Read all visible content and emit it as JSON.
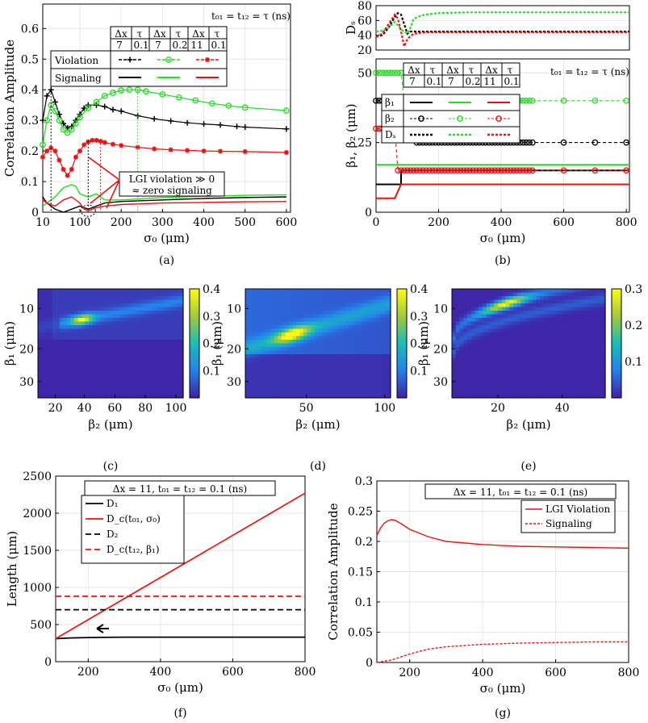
{
  "chart_data": [
    {
      "id": "a",
      "type": "line",
      "caption": "(a)",
      "xlabel": "σ₀ (μm)",
      "ylabel": "Correlation Amplitude",
      "xlim": [
        10,
        610
      ],
      "ylim": [
        0,
        0.68
      ],
      "xticks": [
        10,
        100,
        200,
        300,
        400,
        500,
        600
      ],
      "yticks": [
        0,
        0.1,
        0.2,
        0.3,
        0.4,
        0.5,
        0.6
      ],
      "header": "t₀₁ = t₁₂ = τ (ns)",
      "table": {
        "cols": [
          [
            "Δx",
            "τ"
          ],
          [
            "Δx",
            "τ"
          ],
          [
            "Δx",
            "τ"
          ]
        ],
        "vals": [
          [
            "7",
            "0.1"
          ],
          [
            "7",
            "0.2"
          ],
          [
            "11",
            "0.1"
          ]
        ],
        "rows": [
          "Violation",
          "Signaling"
        ]
      },
      "annotation": [
        "LGI violation ≫ 0",
        "≈ zero signaling"
      ],
      "series": [
        {
          "name": "Violation Δx=7 τ=0.1",
          "color": "#000000",
          "marker": "+",
          "x": [
            10,
            20,
            30,
            40,
            50,
            60,
            70,
            80,
            90,
            100,
            110,
            120,
            140,
            160,
            180,
            200,
            240,
            280,
            320,
            360,
            400,
            440,
            480,
            500,
            600
          ],
          "y": [
            0.3,
            0.38,
            0.4,
            0.36,
            0.32,
            0.29,
            0.275,
            0.28,
            0.3,
            0.32,
            0.34,
            0.35,
            0.35,
            0.345,
            0.335,
            0.33,
            0.315,
            0.305,
            0.298,
            0.292,
            0.288,
            0.285,
            0.28,
            0.278,
            0.272
          ]
        },
        {
          "name": "Violation Δx=7 τ=0.2",
          "color": "#22dd22",
          "marker": "o",
          "x": [
            10,
            20,
            30,
            40,
            50,
            60,
            70,
            80,
            90,
            100,
            120,
            140,
            160,
            180,
            200,
            220,
            240,
            260,
            300,
            340,
            380,
            420,
            460,
            500,
            600
          ],
          "y": [
            0.22,
            0.3,
            0.35,
            0.33,
            0.3,
            0.27,
            0.26,
            0.27,
            0.29,
            0.31,
            0.34,
            0.36,
            0.38,
            0.39,
            0.398,
            0.4,
            0.4,
            0.395,
            0.385,
            0.375,
            0.365,
            0.355,
            0.348,
            0.342,
            0.332
          ]
        },
        {
          "name": "Violation Δx=11 τ=0.1",
          "color": "#ee1111",
          "marker": "*",
          "x": [
            10,
            20,
            30,
            40,
            50,
            60,
            70,
            80,
            90,
            100,
            110,
            120,
            130,
            140,
            150,
            160,
            180,
            200,
            240,
            280,
            320,
            360,
            400,
            440,
            500,
            600
          ],
          "y": [
            0.18,
            0.2,
            0.21,
            0.2,
            0.17,
            0.14,
            0.12,
            0.14,
            0.18,
            0.2,
            0.22,
            0.23,
            0.235,
            0.235,
            0.232,
            0.228,
            0.222,
            0.218,
            0.212,
            0.207,
            0.204,
            0.202,
            0.2,
            0.199,
            0.198,
            0.195
          ]
        },
        {
          "name": "Signaling Δx=7 τ=0.1",
          "color": "#000000",
          "marker": "",
          "x": [
            10,
            20,
            30,
            40,
            50,
            60,
            80,
            100,
            110,
            120,
            140,
            160,
            200,
            300,
            400,
            500,
            600
          ],
          "y": [
            0.05,
            0.03,
            0.02,
            0.01,
            0.005,
            0.0,
            0.01,
            0.02,
            0.015,
            0.01,
            0.02,
            0.03,
            0.035,
            0.04,
            0.045,
            0.048,
            0.05
          ]
        },
        {
          "name": "Signaling Δx=7 τ=0.2",
          "color": "#22dd22",
          "marker": "",
          "x": [
            10,
            20,
            40,
            60,
            80,
            90,
            100,
            120,
            140,
            160,
            200,
            300,
            400,
            500,
            600
          ],
          "y": [
            0.02,
            0.03,
            0.05,
            0.08,
            0.09,
            0.085,
            0.06,
            0.05,
            0.06,
            0.04,
            0.04,
            0.048,
            0.052,
            0.055,
            0.057
          ]
        },
        {
          "name": "Signaling Δx=11 τ=0.1",
          "color": "#ee1111",
          "marker": "",
          "x": [
            10,
            20,
            40,
            60,
            80,
            100,
            110,
            120,
            140,
            160,
            200,
            300,
            400,
            500,
            600
          ],
          "y": [
            0.04,
            0.03,
            0.02,
            0.04,
            0.05,
            0.03,
            0.01,
            0.005,
            0.015,
            0.02,
            0.025,
            0.03,
            0.032,
            0.034,
            0.035
          ]
        }
      ]
    },
    {
      "id": "b-top",
      "type": "line",
      "ylabel": "Dₛ",
      "xlim": [
        0,
        810
      ],
      "ylim": [
        20,
        80
      ],
      "yticks": [
        20,
        40,
        60,
        80
      ],
      "series": [
        {
          "name": "Dₛ Δx=7 τ=0.1",
          "color": "#000000",
          "x": [
            0,
            20,
            40,
            60,
            70,
            80,
            90,
            100,
            110,
            130,
            160,
            200,
            300,
            400,
            500,
            600,
            700,
            810
          ],
          "y": [
            38,
            40,
            50,
            65,
            70,
            68,
            55,
            42,
            45,
            45,
            45,
            45,
            45,
            45,
            45,
            45,
            45,
            45
          ]
        },
        {
          "name": "Dₛ Δx=7 τ=0.2",
          "color": "#22dd22",
          "x": [
            0,
            20,
            40,
            60,
            80,
            100,
            110,
            120,
            140,
            160,
            200,
            300,
            400,
            500,
            600,
            700,
            810
          ],
          "y": [
            45,
            46,
            50,
            58,
            48,
            42,
            50,
            62,
            66,
            68,
            70,
            71,
            71,
            71,
            71,
            71,
            71
          ]
        },
        {
          "name": "Dₛ Δx=11 τ=0.1",
          "color": "#ee1111",
          "x": [
            0,
            20,
            40,
            60,
            70,
            80,
            90,
            100,
            120,
            160,
            200,
            300,
            400,
            500,
            600,
            700,
            810
          ],
          "y": [
            38,
            42,
            55,
            68,
            62,
            45,
            25,
            35,
            42,
            44,
            44,
            44,
            44,
            44,
            44,
            44,
            44
          ]
        }
      ]
    },
    {
      "id": "b",
      "type": "line",
      "caption": "(b)",
      "xlabel": "σ₀ (μm)",
      "ylabel": "β₁, β₂ (μm)",
      "xlim": [
        0,
        810
      ],
      "ylim": [
        0,
        55
      ],
      "xticks": [
        0,
        200,
        400,
        600,
        800
      ],
      "yticks": [
        0,
        25,
        50
      ],
      "header": "t₀₁ = t₁₂ = τ (ns)",
      "table": {
        "cols": [
          [
            "Δx",
            "τ"
          ],
          [
            "Δx",
            "τ"
          ],
          [
            "Δx",
            "τ"
          ]
        ],
        "vals": [
          [
            "7",
            "0.1"
          ],
          [
            "7",
            "0.2"
          ],
          [
            "11",
            "0.1"
          ]
        ],
        "rows": [
          "β₁",
          "β₂",
          "Dₛ"
        ]
      },
      "series": [
        {
          "name": "β₁ Δx=7 τ=0.1",
          "color": "#000000",
          "x": [
            0,
            80,
            80,
            810
          ],
          "y": [
            10,
            10,
            15,
            15
          ]
        },
        {
          "name": "β₁ Δx=7 τ=0.2",
          "color": "#22dd22",
          "x": [
            0,
            810
          ],
          "y": [
            17,
            17
          ]
        },
        {
          "name": "β₁ Δx=11 τ=0.1",
          "color": "#ee1111",
          "x": [
            0,
            60,
            80,
            810
          ],
          "y": [
            5,
            5,
            10,
            10
          ]
        },
        {
          "name": "β₂ Δx=7 τ=0.1",
          "color": "#000000",
          "x": [
            0,
            120,
            130,
            810
          ],
          "y": [
            40,
            40,
            25,
            25
          ]
        },
        {
          "name": "β₂ Δx=7 τ=0.2",
          "color": "#22dd22",
          "x": [
            0,
            80,
            90,
            810
          ],
          "y": [
            50,
            50,
            40,
            40
          ]
        },
        {
          "name": "β₂ Δx=11 τ=0.1",
          "color": "#ee1111",
          "x": [
            0,
            60,
            70,
            810
          ],
          "y": [
            30,
            30,
            15,
            15
          ]
        }
      ]
    },
    {
      "id": "c",
      "type": "heatmap",
      "caption": "(c)",
      "xlabel": "β₂ (μm)",
      "ylabel": "β₁ (μm)",
      "xticks": [
        20,
        40,
        60,
        80,
        100
      ],
      "yticks": [
        10,
        20,
        30
      ],
      "colorbar": [
        0.1,
        0.2,
        0.3,
        0.4
      ]
    },
    {
      "id": "d",
      "type": "heatmap",
      "caption": "(d)",
      "xlabel": "β₂ (μm)",
      "ylabel": "β₁ (μm)",
      "xticks": [
        50,
        100
      ],
      "yticks": [
        10,
        20,
        30
      ],
      "colorbar": [
        0.1,
        0.2,
        0.3,
        0.4
      ]
    },
    {
      "id": "e",
      "type": "heatmap",
      "caption": "(e)",
      "xlabel": "β₂ (μm)",
      "ylabel": "β₁ (μm)",
      "xticks": [
        20,
        40
      ],
      "yticks": [
        10,
        20,
        30
      ],
      "colorbar": [
        0.1,
        0.2,
        0.3
      ]
    },
    {
      "id": "f",
      "type": "line",
      "caption": "(f)",
      "xlabel": "σ₀ (μm)",
      "ylabel": "Length (μm)",
      "xlim": [
        110,
        800
      ],
      "ylim": [
        0,
        2500
      ],
      "xticks": [
        200,
        400,
        600,
        800
      ],
      "yticks": [
        0,
        500,
        1000,
        1500,
        2000,
        2500
      ],
      "title": "Δx = 11, t₀₁ = t₁₂ = 0.1 (ns)",
      "legend": [
        "D₁",
        "D_c(t₀₁, σ₀)",
        "D₂",
        "D_c(t₁₂, β₁)"
      ],
      "series": [
        {
          "name": "D₁",
          "color": "#000000",
          "dash": "",
          "x": [
            110,
            150,
            200,
            300,
            400,
            600,
            800
          ],
          "y": [
            310,
            320,
            325,
            330,
            330,
            330,
            330
          ]
        },
        {
          "name": "D_c(t₀₁, σ₀)",
          "color": "#ee1111",
          "dash": "",
          "x": [
            110,
            800
          ],
          "y": [
            310,
            2270
          ]
        },
        {
          "name": "D₂",
          "color": "#000000",
          "dash": "7,4",
          "x": [
            110,
            800
          ],
          "y": [
            700,
            700
          ]
        },
        {
          "name": "D_c(t₁₂, β₁)",
          "color": "#ee1111",
          "dash": "7,4",
          "x": [
            110,
            800
          ],
          "y": [
            880,
            880
          ]
        }
      ]
    },
    {
      "id": "g",
      "type": "line",
      "caption": "(g)",
      "xlabel": "σ₀ (μm)",
      "ylabel": "Correlation Amplitude",
      "xlim": [
        110,
        800
      ],
      "ylim": [
        0,
        0.3
      ],
      "xticks": [
        200,
        400,
        600,
        800
      ],
      "yticks": [
        0,
        0.05,
        0.1,
        0.15,
        0.2,
        0.25,
        0.3
      ],
      "title": "Δx = 11, t₀₁ = t₁₂ = 0.1 (ns)",
      "legend": [
        "LGI Violation",
        "Signaling"
      ],
      "series": [
        {
          "name": "LGI Violation",
          "color": "#ee1111",
          "dash": "",
          "x": [
            110,
            120,
            130,
            140,
            150,
            160,
            180,
            200,
            250,
            300,
            400,
            500,
            600,
            700,
            800
          ],
          "y": [
            0.21,
            0.222,
            0.23,
            0.234,
            0.236,
            0.235,
            0.228,
            0.22,
            0.208,
            0.2,
            0.195,
            0.192,
            0.191,
            0.19,
            0.189
          ]
        },
        {
          "name": "Signaling",
          "color": "#ee1111",
          "dash": "3,2",
          "x": [
            110,
            150,
            200,
            250,
            300,
            400,
            500,
            600,
            700,
            800
          ],
          "y": [
            0.0,
            0.004,
            0.014,
            0.022,
            0.026,
            0.03,
            0.032,
            0.033,
            0.034,
            0.034
          ]
        }
      ]
    }
  ]
}
